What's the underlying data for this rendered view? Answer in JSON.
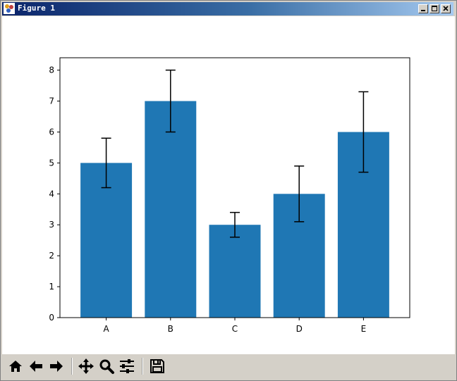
{
  "window": {
    "title": "Figure 1",
    "icons": {
      "app": "figure-app-icon",
      "minimize": "minimize-icon",
      "maximize": "maximize-icon",
      "close": "close-icon"
    }
  },
  "toolbar": {
    "buttons": [
      {
        "name": "home-button",
        "icon": "home-icon"
      },
      {
        "name": "back-button",
        "icon": "arrow-left-icon"
      },
      {
        "name": "forward-button",
        "icon": "arrow-right-icon"
      },
      {
        "name": "pan-button",
        "icon": "move-icon"
      },
      {
        "name": "zoom-button",
        "icon": "magnifier-icon"
      },
      {
        "name": "configure-subplots-button",
        "icon": "sliders-icon"
      },
      {
        "name": "save-button",
        "icon": "floppy-disk-icon"
      }
    ]
  },
  "chart_data": {
    "type": "bar",
    "categories": [
      "A",
      "B",
      "C",
      "D",
      "E"
    ],
    "values": [
      5,
      7,
      3,
      4,
      6
    ],
    "errors": [
      0.8,
      1.0,
      0.4,
      0.9,
      1.3
    ],
    "title": "",
    "xlabel": "",
    "ylabel": "",
    "ylim": [
      0,
      8.4
    ],
    "yticks": [
      0,
      1,
      2,
      3,
      4,
      5,
      6,
      7,
      8
    ],
    "bar_color": "#1f77b4",
    "error_color": "#000000",
    "grid": false
  }
}
